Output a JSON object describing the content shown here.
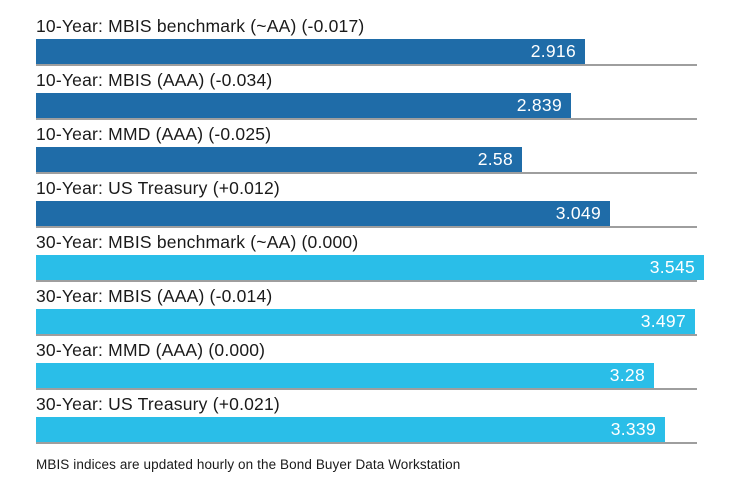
{
  "chart_data": {
    "type": "bar",
    "orientation": "horizontal",
    "title": "",
    "xlabel": "",
    "ylabel": "",
    "xlim": [
      0,
      3.545
    ],
    "grid": "row-separator-lines",
    "legend_position": "none",
    "colors": {
      "ten_year_bar": "#1F6CA8",
      "thirty_year_bar": "#2ABEE8",
      "separator_line": "#9e9e9e",
      "label_text": "#1a1a1a",
      "value_text": "#ffffff"
    },
    "bars": [
      {
        "label": "10-Year: MBIS benchmark (~AA) (-0.017)",
        "value": 2.916,
        "value_display": "2.916",
        "group": "ten_year"
      },
      {
        "label": "10-Year: MBIS (AAA) (-0.034)",
        "value": 2.839,
        "value_display": "2.839",
        "group": "ten_year"
      },
      {
        "label": "10-Year: MMD (AAA) (-0.025)",
        "value": 2.58,
        "value_display": "2.58",
        "group": "ten_year"
      },
      {
        "label": "10-Year: US Treasury (+0.012)",
        "value": 3.049,
        "value_display": "3.049",
        "group": "ten_year"
      },
      {
        "label": "30-Year: MBIS benchmark (~AA) (0.000)",
        "value": 3.545,
        "value_display": "3.545",
        "group": "thirty_year"
      },
      {
        "label": "30-Year: MBIS (AAA) (-0.014)",
        "value": 3.497,
        "value_display": "3.497",
        "group": "thirty_year"
      },
      {
        "label": "30-Year: MMD (AAA) (0.000)",
        "value": 3.28,
        "value_display": "3.28",
        "group": "thirty_year"
      },
      {
        "label": "30-Year: US Treasury (+0.021)",
        "value": 3.339,
        "value_display": "3.339",
        "group": "thirty_year"
      }
    ],
    "footnote": "MBIS indices are updated hourly on the Bond Buyer Data Workstation"
  }
}
